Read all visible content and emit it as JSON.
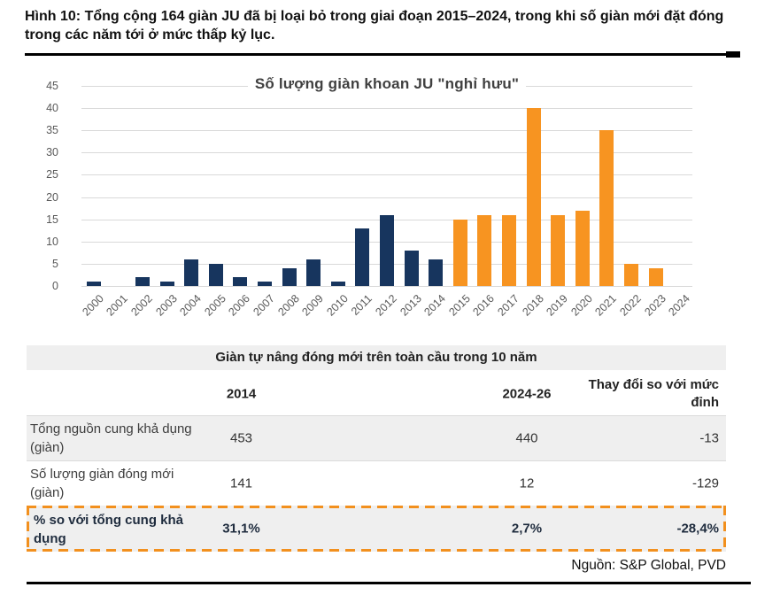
{
  "page": {
    "caption": "Hình 10: Tổng cộng 164 giàn JU đã bị loại bỏ trong giai đoạn 2015–2024, trong khi số giàn mới đặt đóng trong các năm tới ở mức thấp kỷ lục.",
    "source": "Nguồn: S&P Global, PVD"
  },
  "chart_data": {
    "type": "bar",
    "title": "Số lượng giàn khoan JU \"nghỉ hưu\"",
    "categories": [
      "2000",
      "2001",
      "2002",
      "2003",
      "2004",
      "2005",
      "2006",
      "2007",
      "2008",
      "2009",
      "2010",
      "2011",
      "2012",
      "2013",
      "2014",
      "2015",
      "2016",
      "2017",
      "2018",
      "2019",
      "2020",
      "2021",
      "2022",
      "2023",
      "2024"
    ],
    "values": [
      1,
      0,
      2,
      1,
      6,
      5,
      2,
      1,
      4,
      6,
      1,
      13,
      16,
      8,
      6,
      15,
      16,
      16,
      40,
      16,
      17,
      35,
      5,
      4,
      0
    ],
    "xlabel": "",
    "ylabel": "",
    "ylim": [
      0,
      45
    ],
    "ytick_step": 5,
    "grid": true,
    "legend": "none",
    "color_split_year": 2015,
    "color_before_split": "#17355E",
    "color_after_split": "#F79421",
    "note": "Navy bars 2000-2014, orange bars 2015-2024; orange total = 164"
  },
  "table": {
    "title": "Giàn tự nâng đóng mới trên toàn cầu trong 10 năm",
    "columns": [
      "2014",
      "2024-26",
      "Thay đổi so với mức đỉnh"
    ],
    "rows": [
      {
        "label": "Tổng nguồn cung khả dụng (giàn)",
        "values": [
          "453",
          "440",
          "-13"
        ],
        "highlight": false
      },
      {
        "label": "Số lượng giàn đóng mới (giàn)",
        "values": [
          "141",
          "12",
          "-129"
        ],
        "highlight": false
      },
      {
        "label": "% so với tổng cung khả dụng",
        "values": [
          "31,1%",
          "2,7%",
          "-28,4%"
        ],
        "highlight": true
      }
    ]
  },
  "colors": {
    "bar_navy": "#17355E",
    "bar_orange": "#F79421",
    "gridline": "#D9D9D9",
    "axis_label": "#595959",
    "table_stripe": "#EFEFEF",
    "dashed_highlight_border": "#F2901E",
    "rule_black": "#000000"
  }
}
